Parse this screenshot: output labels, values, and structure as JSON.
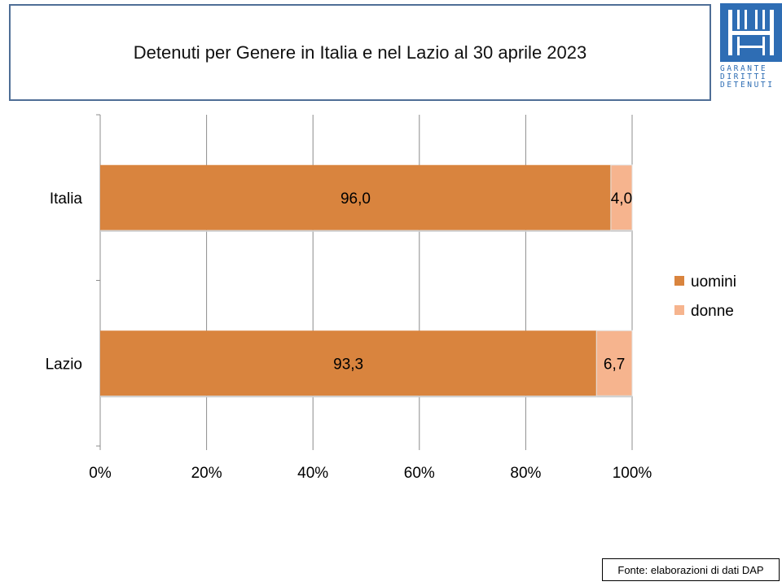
{
  "chart_data": {
    "type": "bar",
    "orientation": "horizontal",
    "stacked": "percent",
    "title": "Detenuti per Genere in Italia e nel Lazio al 30 aprile 2023",
    "categories": [
      "Italia",
      "Lazio"
    ],
    "series": [
      {
        "name": "uomini",
        "values": [
          96.0,
          93.3
        ],
        "labels": [
          "96,0",
          "93,3"
        ],
        "color": "#d9843e"
      },
      {
        "name": "donne",
        "values": [
          4.0,
          6.7
        ],
        "labels": [
          "4,0",
          "6,7"
        ],
        "color": "#f6b48e"
      }
    ],
    "xlim": [
      0,
      100
    ],
    "xticks": [
      "0%",
      "20%",
      "40%",
      "60%",
      "80%",
      "100%"
    ],
    "grid": true,
    "legend_position": "right"
  },
  "logo": {
    "lines": [
      "GARANTE",
      "DIRITTI",
      "DETENUTI"
    ],
    "color": "#2e6db4"
  },
  "source_note": "Fonte: elaborazioni di dati DAP"
}
